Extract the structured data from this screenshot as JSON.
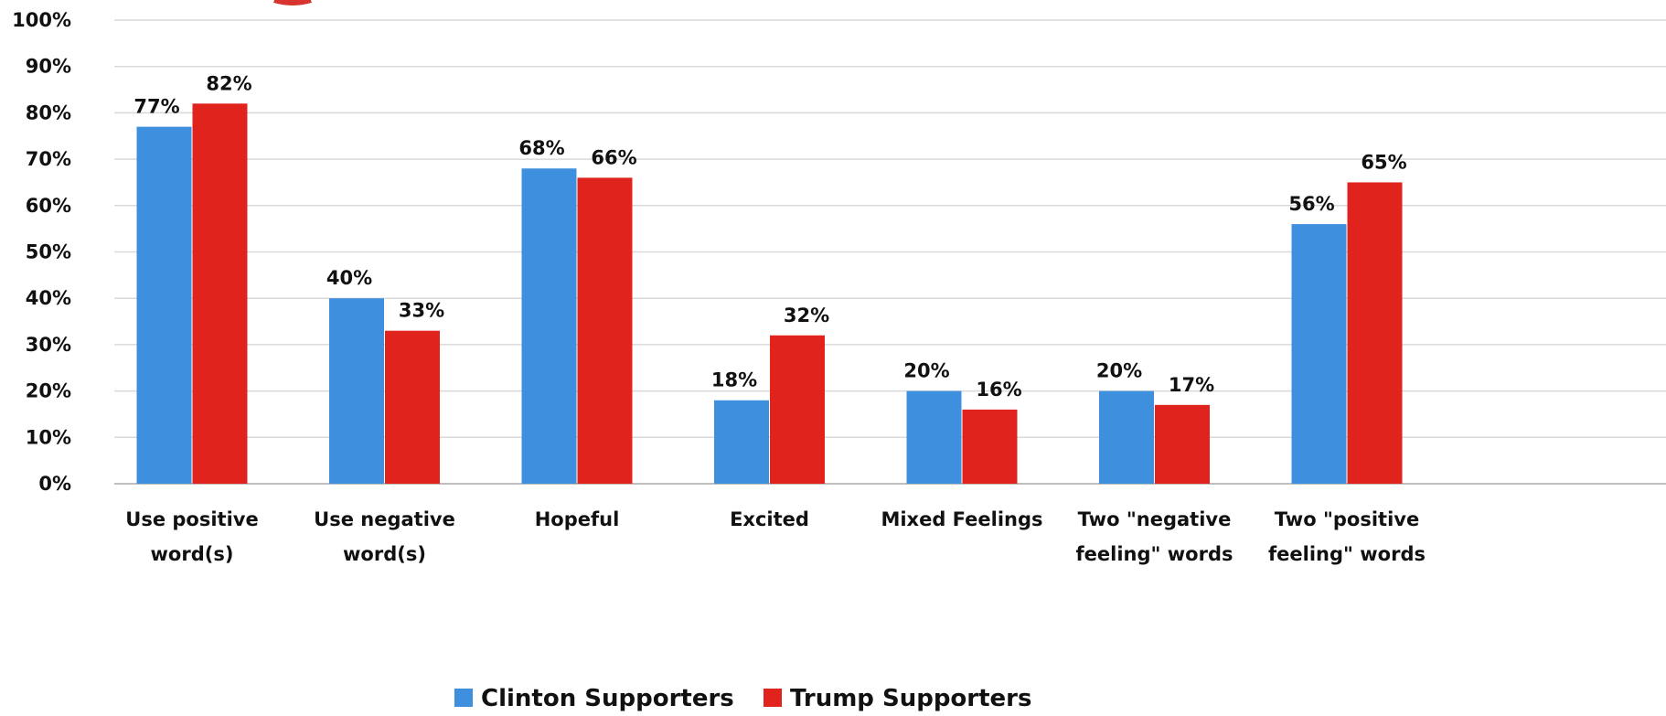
{
  "chart_data": {
    "type": "bar",
    "categories": [
      [
        "Use positive",
        "word(s)"
      ],
      [
        "Use negative",
        "word(s)"
      ],
      [
        "Hopeful"
      ],
      [
        "Excited"
      ],
      [
        "Mixed Feelings"
      ],
      [
        "Two \"negative",
        "feeling\" words"
      ],
      [
        "Two \"positive",
        "feeling\" words"
      ]
    ],
    "series": [
      {
        "name": "Clinton Supporters",
        "color": "#3f8fdf",
        "values": [
          77,
          40,
          68,
          18,
          20,
          20,
          56
        ]
      },
      {
        "name": "Trump Supporters",
        "color": "#e0231c",
        "values": [
          82,
          33,
          66,
          32,
          16,
          17,
          65
        ]
      }
    ],
    "ylim": [
      0,
      100
    ],
    "yticks": [
      "0%",
      "10%",
      "20%",
      "30%",
      "40%",
      "50%",
      "60%",
      "70%",
      "80%",
      "90%",
      "100%"
    ],
    "value_suffix": "%",
    "grid": true,
    "legend_position": "bottom"
  }
}
